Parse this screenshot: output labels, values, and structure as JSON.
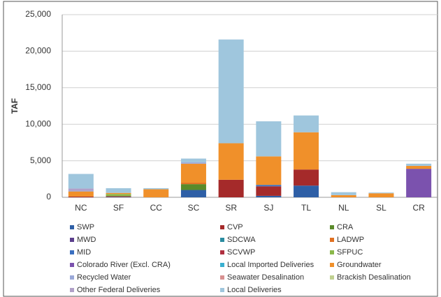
{
  "chart_data": {
    "type": "stacked_bar",
    "y_label": "TAF",
    "categories": [
      "NC",
      "SF",
      "CC",
      "SC",
      "SR",
      "SJ",
      "TL",
      "NL",
      "SL",
      "CR"
    ],
    "ylim": [
      0,
      25000
    ],
    "yticks": [
      0,
      {
        "value": 5000,
        "label": "5,000"
      },
      {
        "value": 10000,
        "label": "10,000"
      },
      {
        "value": 15000,
        "label": "15,000"
      },
      {
        "value": 20000,
        "label": "20,000"
      },
      {
        "value": 25000,
        "label": "25,000"
      }
    ],
    "grid": true,
    "series": [
      {
        "name": "SWP",
        "color": "#2e5fa6",
        "values": [
          0,
          50,
          0,
          1000,
          0,
          200,
          1600,
          0,
          0,
          0
        ]
      },
      {
        "name": "CVP",
        "color": "#a52a2a",
        "values": [
          100,
          100,
          0,
          0,
          2400,
          1300,
          2200,
          0,
          0,
          0
        ]
      },
      {
        "name": "CRA",
        "color": "#5a8a2a",
        "values": [
          0,
          0,
          0,
          800,
          0,
          0,
          0,
          0,
          0,
          0
        ]
      },
      {
        "name": "MWD",
        "color": "#5b3f8c",
        "values": [
          0,
          0,
          0,
          0,
          0,
          0,
          0,
          0,
          0,
          0
        ]
      },
      {
        "name": "SDCWA",
        "color": "#2a8ca0",
        "values": [
          0,
          0,
          0,
          0,
          0,
          0,
          0,
          0,
          0,
          0
        ]
      },
      {
        "name": "LADWP",
        "color": "#e07020",
        "values": [
          0,
          0,
          0,
          200,
          0,
          0,
          0,
          0,
          0,
          0
        ]
      },
      {
        "name": "MID",
        "color": "#3a6fc0",
        "values": [
          0,
          0,
          0,
          0,
          0,
          200,
          0,
          0,
          0,
          0
        ]
      },
      {
        "name": "SCVWP",
        "color": "#b03040",
        "values": [
          0,
          0,
          0,
          0,
          0,
          0,
          0,
          0,
          0,
          0
        ]
      },
      {
        "name": "SFPUC",
        "color": "#8ab84a",
        "values": [
          0,
          300,
          0,
          0,
          0,
          0,
          0,
          0,
          0,
          0
        ]
      },
      {
        "name": "Colorado River (Excl. CRA)",
        "color": "#7b52ae",
        "values": [
          0,
          0,
          0,
          0,
          0,
          0,
          0,
          0,
          0,
          3900
        ]
      },
      {
        "name": "Local Imported Deliveries",
        "color": "#3ab0d0",
        "values": [
          0,
          0,
          0,
          0,
          0,
          0,
          0,
          0,
          0,
          0
        ]
      },
      {
        "name": "Groundwater",
        "color": "#f0902a",
        "values": [
          700,
          150,
          1100,
          2600,
          5000,
          3900,
          5100,
          300,
          550,
          400
        ]
      },
      {
        "name": "Recycled Water",
        "color": "#9aa8d8",
        "values": [
          100,
          0,
          0,
          200,
          0,
          0,
          0,
          0,
          0,
          0
        ]
      },
      {
        "name": "Seawater Desalination",
        "color": "#d89090",
        "values": [
          0,
          0,
          0,
          0,
          0,
          0,
          0,
          0,
          0,
          0
        ]
      },
      {
        "name": "Brackish Desalination",
        "color": "#c0d090",
        "values": [
          0,
          0,
          0,
          0,
          0,
          0,
          0,
          0,
          0,
          0
        ]
      },
      {
        "name": "Other Federal Deliveries",
        "color": "#b0a0c8",
        "values": [
          300,
          0,
          0,
          0,
          0,
          0,
          0,
          0,
          0,
          0
        ]
      },
      {
        "name": "Local Deliveries",
        "color": "#9fc6dd",
        "values": [
          2000,
          650,
          150,
          500,
          14200,
          4800,
          2300,
          400,
          100,
          300
        ]
      }
    ]
  }
}
